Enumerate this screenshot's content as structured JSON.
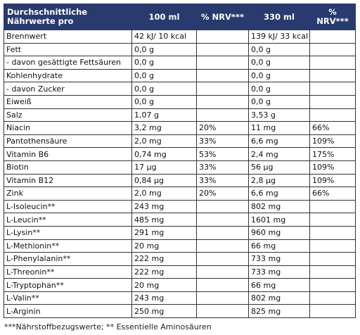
{
  "table": {
    "headers": [
      "Durchschnittliche Nährwerte pro",
      "100 ml",
      "% NRV***",
      "330 ml",
      "% NRV***"
    ],
    "rows": [
      [
        "Brennwert",
        "42 kJ/ 10 kcal",
        "",
        "139 kJ/ 33 kcal",
        ""
      ],
      [
        "Fett",
        "0,0 g",
        "",
        "0,0 g",
        ""
      ],
      [
        "- davon gesättigte Fettsäuren",
        "0,0 g",
        "",
        "0,0 g",
        ""
      ],
      [
        "Kohlenhydrate",
        "0,0 g",
        "",
        "0,0 g",
        ""
      ],
      [
        "- davon Zucker",
        "0,0 g",
        "",
        "0,0 g",
        ""
      ],
      [
        "Eiweiß",
        "0,0 g",
        "",
        "0,0 g",
        ""
      ],
      [
        "Salz",
        "1,07 g",
        "",
        "3,53 g",
        ""
      ],
      [
        "Niacin",
        "3,2 mg",
        "20%",
        "11 mg",
        "66%"
      ],
      [
        "Pantothensäure",
        "2,0 mg",
        "33%",
        "6,6 mg",
        "109%"
      ],
      [
        "Vitamin B6",
        "0,74 mg",
        "53%",
        "2,4 mg",
        "175%"
      ],
      [
        "Biotin",
        "17 µg",
        "33%",
        "56 µg",
        "109%"
      ],
      [
        "Vitamin B12",
        "0,84 µg",
        "33%",
        "2,8 µg",
        "109%"
      ],
      [
        "Zink",
        "2,0 mg",
        "20%",
        "6,6 mg",
        "66%"
      ],
      [
        "L-Isoleucin**",
        "243 mg",
        "",
        "802 mg",
        ""
      ],
      [
        "L-Leucin**",
        "485 mg",
        "",
        "1601 mg",
        ""
      ],
      [
        "L-Lysin**",
        "291 mg",
        "",
        "960 mg",
        ""
      ],
      [
        "L-Methionin**",
        "20 mg",
        "",
        "66 mg",
        ""
      ],
      [
        "L-Phenylalanin**",
        "222 mg",
        "",
        "733 mg",
        ""
      ],
      [
        "L-Threonin**",
        "222 mg",
        "",
        "733 mg",
        ""
      ],
      [
        "L-Tryptophan**",
        "20 mg",
        "",
        "66 mg",
        ""
      ],
      [
        "L-Valin**",
        "243 mg",
        "",
        "802 mg",
        ""
      ],
      [
        "L-Arginin",
        "250 mg",
        "",
        "825 mg",
        ""
      ]
    ]
  },
  "footnote": "***Nährstoffbezugswerte; ** Essentielle Aminosäuren"
}
